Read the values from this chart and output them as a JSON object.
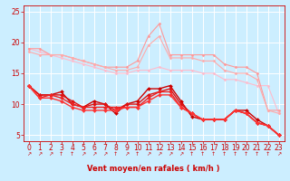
{
  "background_color": "#cceeff",
  "grid_color": "#ffffff",
  "xlabel": "Vent moyen/en rafales ( km/h )",
  "xlabel_color": "#cc0000",
  "xlabel_fontsize": 6,
  "tick_color": "#cc0000",
  "tick_fontsize": 5.5,
  "xlim": [
    -0.5,
    23.5
  ],
  "ylim": [
    4,
    26
  ],
  "yticks": [
    5,
    10,
    15,
    20,
    25
  ],
  "xticks": [
    0,
    1,
    2,
    3,
    4,
    5,
    6,
    7,
    8,
    9,
    10,
    11,
    12,
    13,
    14,
    15,
    16,
    17,
    18,
    19,
    20,
    21,
    22,
    23
  ],
  "lines": [
    {
      "x": [
        0,
        1,
        2,
        3,
        4,
        5,
        6,
        7,
        8,
        9,
        10,
        11,
        12,
        13,
        14,
        15,
        16,
        17,
        18,
        19,
        20,
        21,
        22,
        23
      ],
      "y": [
        19.0,
        18.5,
        18.0,
        17.5,
        17.0,
        16.5,
        16.0,
        15.5,
        15.0,
        15.0,
        15.5,
        15.5,
        16.0,
        15.5,
        15.5,
        15.5,
        15.0,
        15.0,
        14.0,
        14.0,
        13.5,
        13.0,
        13.0,
        8.5
      ],
      "color": "#ffbbcc",
      "linewidth": 0.8,
      "marker": "D",
      "markersize": 1.5,
      "zorder": 2
    },
    {
      "x": [
        0,
        1,
        2,
        3,
        4,
        5,
        6,
        7,
        8,
        9,
        10,
        11,
        12,
        13,
        14,
        15,
        16,
        17,
        18,
        19,
        20,
        21,
        22,
        23
      ],
      "y": [
        19.0,
        19.0,
        18.0,
        18.0,
        17.5,
        17.0,
        16.5,
        16.0,
        16.0,
        16.0,
        17.0,
        21.0,
        23.0,
        18.0,
        18.0,
        18.0,
        18.0,
        18.0,
        16.5,
        16.0,
        16.0,
        15.0,
        9.0,
        9.0
      ],
      "color": "#ff9999",
      "linewidth": 0.8,
      "marker": "D",
      "markersize": 1.5,
      "zorder": 2
    },
    {
      "x": [
        0,
        1,
        2,
        3,
        4,
        5,
        6,
        7,
        8,
        9,
        10,
        11,
        12,
        13,
        14,
        15,
        16,
        17,
        18,
        19,
        20,
        21,
        22,
        23
      ],
      "y": [
        18.5,
        18.0,
        18.0,
        18.0,
        17.5,
        17.0,
        16.5,
        16.0,
        15.5,
        15.5,
        16.0,
        19.5,
        21.0,
        17.5,
        17.5,
        17.5,
        17.0,
        17.0,
        15.5,
        15.0,
        15.0,
        14.0,
        9.0,
        8.5
      ],
      "color": "#ffaaaa",
      "linewidth": 0.8,
      "marker": "D",
      "markersize": 1.5,
      "zorder": 2
    },
    {
      "x": [
        0,
        1,
        2,
        3,
        4,
        5,
        6,
        7,
        8,
        9,
        10,
        11,
        12,
        13,
        14,
        15,
        16,
        17,
        18,
        19,
        20,
        21,
        22,
        23
      ],
      "y": [
        13.0,
        11.5,
        11.5,
        12.0,
        10.0,
        9.5,
        10.5,
        10.0,
        8.5,
        10.0,
        10.5,
        12.5,
        12.5,
        13.0,
        10.5,
        8.0,
        7.5,
        7.5,
        7.5,
        9.0,
        9.0,
        7.5,
        6.5,
        5.0
      ],
      "color": "#cc0000",
      "linewidth": 1.0,
      "marker": "D",
      "markersize": 2.0,
      "zorder": 3
    },
    {
      "x": [
        0,
        1,
        2,
        3,
        4,
        5,
        6,
        7,
        8,
        9,
        10,
        11,
        12,
        13,
        14,
        15,
        16,
        17,
        18,
        19,
        20,
        21,
        22,
        23
      ],
      "y": [
        13.0,
        11.5,
        11.5,
        11.5,
        10.5,
        9.5,
        10.0,
        10.0,
        9.0,
        10.0,
        10.0,
        11.5,
        12.0,
        12.5,
        10.0,
        8.5,
        7.5,
        7.5,
        7.5,
        9.0,
        8.5,
        7.0,
        6.5,
        5.0
      ],
      "color": "#dd1111",
      "linewidth": 1.0,
      "marker": "D",
      "markersize": 2.0,
      "zorder": 3
    },
    {
      "x": [
        0,
        1,
        2,
        3,
        4,
        5,
        6,
        7,
        8,
        9,
        10,
        11,
        12,
        13,
        14,
        15,
        16,
        17,
        18,
        19,
        20,
        21,
        22,
        23
      ],
      "y": [
        13.0,
        11.0,
        11.5,
        11.0,
        10.0,
        9.5,
        9.5,
        9.5,
        9.5,
        9.5,
        9.5,
        11.0,
        12.0,
        12.0,
        9.5,
        8.5,
        7.5,
        7.5,
        7.5,
        9.0,
        8.5,
        7.0,
        6.5,
        5.0
      ],
      "color": "#ee2222",
      "linewidth": 1.0,
      "marker": "D",
      "markersize": 2.0,
      "zorder": 3
    },
    {
      "x": [
        0,
        1,
        2,
        3,
        4,
        5,
        6,
        7,
        8,
        9,
        10,
        11,
        12,
        13,
        14,
        15,
        16,
        17,
        18,
        19,
        20,
        21,
        22,
        23
      ],
      "y": [
        13.0,
        11.0,
        11.0,
        10.5,
        9.5,
        9.0,
        9.0,
        9.0,
        9.0,
        9.5,
        9.5,
        10.5,
        11.5,
        11.5,
        9.5,
        8.5,
        7.5,
        7.5,
        7.5,
        9.0,
        8.5,
        7.0,
        6.5,
        5.0
      ],
      "color": "#ff3333",
      "linewidth": 1.0,
      "marker": "D",
      "markersize": 2.0,
      "zorder": 3
    }
  ],
  "wind_arrows": [
    "↗",
    "↗",
    "↗",
    "↑",
    "↑",
    "↗",
    "↗",
    "↗",
    "↑",
    "↗",
    "↑",
    "↗",
    "↗",
    "↗",
    "↗",
    "↑",
    "↑",
    "↑",
    "↑",
    "↑",
    "↑",
    "↑",
    "↑",
    "↗"
  ]
}
